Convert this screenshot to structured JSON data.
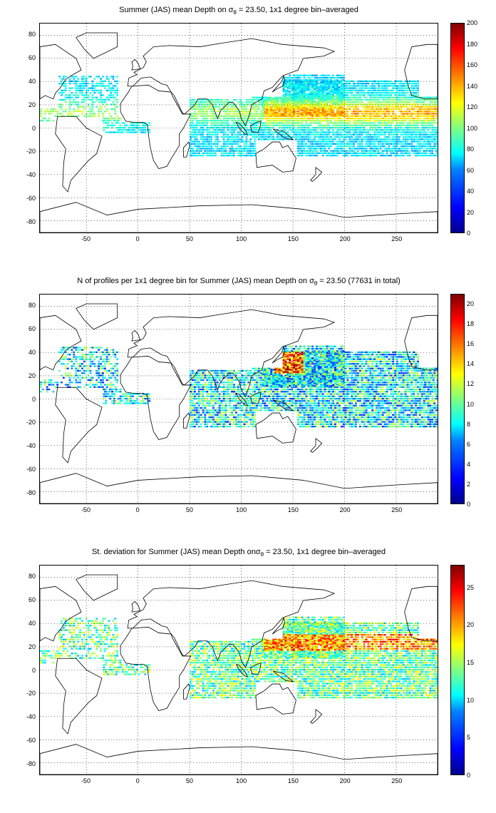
{
  "panels": [
    {
      "title_pre": "Summer (JAS) mean Depth on σ",
      "title_sub": "θ",
      "title_post": " = 23.50, 1x1 degree bin–averaged",
      "colorbar_ticks": [
        "0",
        "20",
        "40",
        "60",
        "80",
        "100",
        "120",
        "140",
        "160",
        "180",
        "200"
      ],
      "colorbar_range": [
        0,
        200
      ]
    },
    {
      "title_pre": "N of profiles per 1x1 degree bin for Summer (JAS) mean Depth on σ",
      "title_sub": "θ",
      "title_post": " = 23.50 (77631 in total)",
      "colorbar_ticks": [
        "0",
        "2",
        "4",
        "6",
        "8",
        "10",
        "12",
        "14",
        "16",
        "18",
        "20"
      ],
      "colorbar_range": [
        0,
        21
      ]
    },
    {
      "title_pre": "St. deviation for Summer (JAS) mean Depth onσ",
      "title_sub": "θ",
      "title_post": " = 23.50, 1x1 degree bin–averaged",
      "colorbar_ticks": [
        "0",
        "5",
        "10",
        "15",
        "20",
        "25"
      ],
      "colorbar_range": [
        0,
        28
      ]
    }
  ],
  "axes": {
    "x_ticks": [
      "-50",
      "0",
      "50",
      "100",
      "150",
      "200",
      "250"
    ],
    "y_ticks": [
      "80",
      "60",
      "40",
      "20",
      "0",
      "-20",
      "-40",
      "-60",
      "-80"
    ],
    "xlim": [
      -95,
      290
    ],
    "ylim": [
      -90,
      90
    ]
  },
  "colors": {
    "coast": "#000000",
    "grid": "#000000"
  }
}
